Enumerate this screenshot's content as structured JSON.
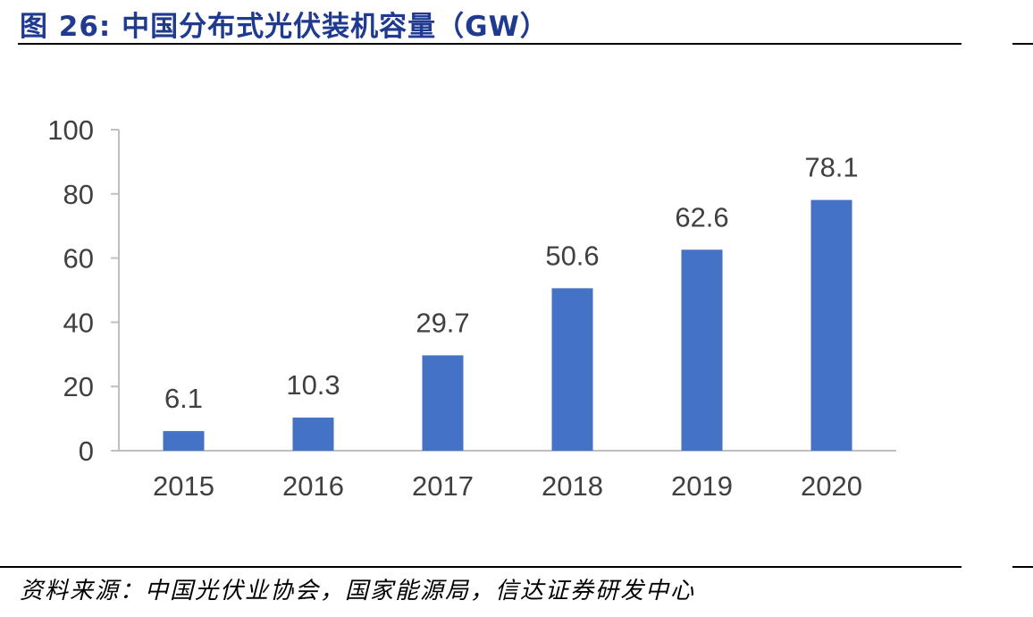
{
  "title": "图 26:  中国分布式光伏装机容量（GW）",
  "source": "资料来源：中国光伏业协会，国家能源局，信达证券研发中心",
  "colors": {
    "bar": "#4472c4",
    "title": "#1f3a8f",
    "axis": "#bfbfbf",
    "text": "#404040"
  },
  "chart_data": {
    "type": "bar",
    "categories": [
      "2015",
      "2016",
      "2017",
      "2018",
      "2019",
      "2020"
    ],
    "series": [
      {
        "values": [
          6.1,
          10.3,
          29.7,
          50.6,
          62.6,
          78.1
        ]
      }
    ],
    "value_labels": [
      "6.1",
      "10.3",
      "29.7",
      "50.6",
      "62.6",
      "78.1"
    ],
    "title": "",
    "xlabel": "",
    "ylabel": "",
    "ylim": [
      0,
      100
    ],
    "yticks": [
      0,
      20,
      40,
      60,
      80,
      100
    ],
    "grid": false,
    "legend": "none"
  }
}
